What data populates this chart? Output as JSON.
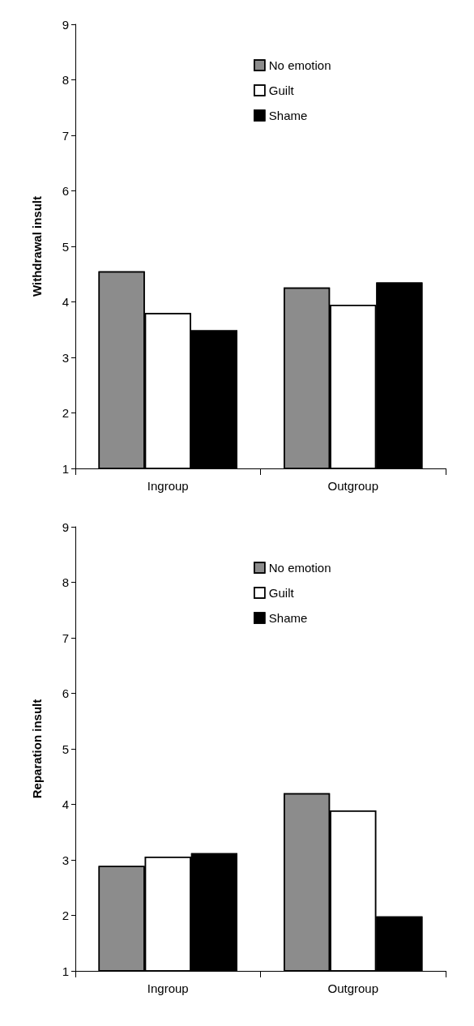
{
  "chart_data": [
    {
      "type": "bar",
      "ylabel": "Withdrawal insult",
      "categories": [
        "Ingroup",
        "Outgroup"
      ],
      "series": [
        {
          "name": "No emotion",
          "color": "#8c8c8c",
          "values": [
            4.55,
            4.26
          ]
        },
        {
          "name": "Guilt",
          "color": "#ffffff",
          "values": [
            3.8,
            3.95
          ]
        },
        {
          "name": "Shame",
          "color": "#000000",
          "values": [
            3.49,
            4.35
          ]
        }
      ],
      "ylim": [
        1,
        9
      ],
      "yticks": [
        1,
        2,
        3,
        4,
        5,
        6,
        7,
        8,
        9
      ],
      "grid": false,
      "legend": "top right"
    },
    {
      "type": "bar",
      "ylabel": "Reparation insult",
      "categories": [
        "Ingroup",
        "Outgroup"
      ],
      "series": [
        {
          "name": "No emotion",
          "color": "#8c8c8c",
          "values": [
            2.89,
            4.2
          ]
        },
        {
          "name": "Guilt",
          "color": "#ffffff",
          "values": [
            3.06,
            3.89
          ]
        },
        {
          "name": "Shame",
          "color": "#000000",
          "values": [
            3.12,
            1.98
          ]
        }
      ],
      "ylim": [
        1,
        9
      ],
      "yticks": [
        1,
        2,
        3,
        4,
        5,
        6,
        7,
        8,
        9
      ],
      "grid": false,
      "legend": "top right"
    }
  ]
}
